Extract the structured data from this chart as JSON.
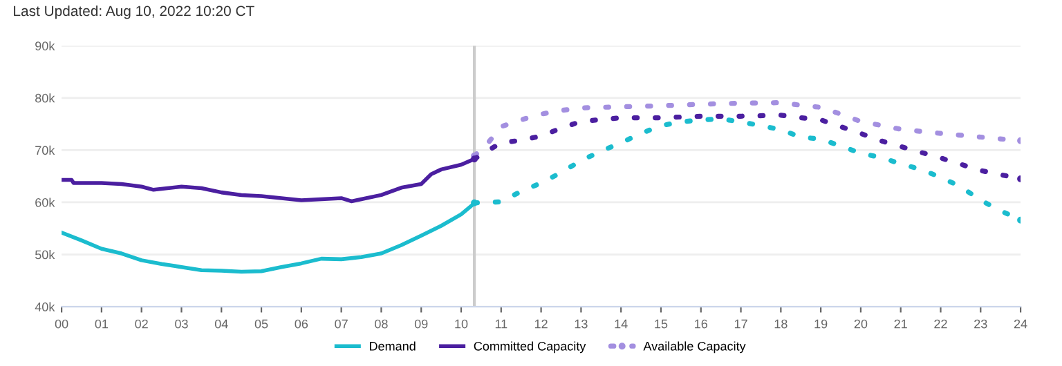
{
  "chart_data": {
    "type": "line",
    "annotations": [
      "Last Updated: Aug 10, 2022 10:20 CT"
    ],
    "series": [
      {
        "name": "Demand",
        "color": "#1bbcce",
        "line_style": "solid",
        "x": [
          0,
          0.5,
          1,
          1.5,
          2,
          2.5,
          3,
          3.5,
          4,
          4.5,
          5,
          5.5,
          6,
          6.5,
          7,
          7.5,
          8,
          8.5,
          9,
          9.5,
          10,
          10.33
        ],
        "values": [
          54.2,
          52.7,
          51.1,
          50.2,
          48.9,
          48.2,
          47.6,
          47.0,
          46.9,
          46.7,
          46.8,
          47.6,
          48.3,
          49.2,
          49.1,
          49.5,
          50.2,
          51.8,
          53.6,
          55.5,
          57.7,
          59.8
        ]
      },
      {
        "name": "Committed Capacity",
        "color": "#4b1fa0",
        "line_style": "solid",
        "x": [
          0,
          0.25,
          0.3,
          1,
          1.5,
          2,
          2.3,
          3,
          3.5,
          4,
          4.5,
          5,
          5.5,
          6,
          6.5,
          7,
          7.25,
          7.5,
          8,
          8.5,
          9,
          9.25,
          9.5,
          10,
          10.33
        ],
        "values": [
          64.3,
          64.3,
          63.7,
          63.7,
          63.5,
          63.0,
          62.4,
          63.0,
          62.7,
          61.9,
          61.4,
          61.2,
          60.8,
          60.4,
          60.6,
          60.8,
          60.2,
          60.6,
          61.4,
          62.8,
          63.5,
          65.4,
          66.3,
          67.2,
          68.3
        ]
      },
      {
        "name": "Available Capacity",
        "color": "#a38fe0",
        "line_style": "dotted",
        "x": [
          10.33,
          10.6,
          11,
          11.5,
          12,
          12.5,
          13,
          14,
          15,
          16,
          17,
          18,
          18.5,
          19,
          19.5,
          20,
          21,
          22,
          23,
          24
        ],
        "values": [
          68.9,
          70.7,
          74.5,
          75.8,
          76.9,
          77.6,
          78.1,
          78.3,
          78.5,
          78.8,
          79.0,
          79.1,
          78.6,
          78.2,
          76.9,
          75.5,
          74.0,
          73.2,
          72.5,
          71.8
        ]
      },
      {
        "color": "#4b1fa0",
        "line_style": "dotted",
        "x": [
          10.33,
          10.6,
          11,
          11.5,
          12,
          12.5,
          13,
          14,
          15,
          16,
          17,
          18,
          18.5,
          19,
          19.5,
          20,
          20.5,
          21,
          22,
          23,
          24
        ],
        "values": [
          68.3,
          69.6,
          71.4,
          71.9,
          72.7,
          74.2,
          75.5,
          76.2,
          76.2,
          76.5,
          76.5,
          76.7,
          76.2,
          75.8,
          74.5,
          73.2,
          71.8,
          70.7,
          68.5,
          66.1,
          64.5
        ]
      },
      {
        "color": "#1bbcce",
        "line_style": "dotted",
        "x": [
          10.33,
          11,
          11.5,
          12,
          12.5,
          13,
          13.5,
          14,
          14.5,
          15,
          15.5,
          16,
          16.5,
          17,
          17.5,
          18,
          18.5,
          19,
          19.5,
          20,
          20.5,
          21,
          21.5,
          22,
          22.5,
          23,
          23.5,
          24
        ],
        "values": [
          59.9,
          60.1,
          62.1,
          63.7,
          65.7,
          68.0,
          69.8,
          71.4,
          73.2,
          74.7,
          75.4,
          75.8,
          76.0,
          75.4,
          74.7,
          73.9,
          72.5,
          72.1,
          70.8,
          69.4,
          68.6,
          67.4,
          66.3,
          64.8,
          63.0,
          60.4,
          58.4,
          56.6
        ]
      }
    ],
    "xlim": [
      0,
      24
    ],
    "xticks": [
      {
        "value": 0,
        "label": "00"
      },
      {
        "value": 1,
        "label": "01"
      },
      {
        "value": 2,
        "label": "02"
      },
      {
        "value": 3,
        "label": "03"
      },
      {
        "value": 4,
        "label": "04"
      },
      {
        "value": 5,
        "label": "05"
      },
      {
        "value": 6,
        "label": "06"
      },
      {
        "value": 7,
        "label": "07"
      },
      {
        "value": 8,
        "label": "08"
      },
      {
        "value": 9,
        "label": "09"
      },
      10,
      11,
      12,
      13,
      14,
      15,
      16,
      17,
      18,
      19,
      20,
      21,
      22,
      23,
      24
    ],
    "ylim": [
      40,
      90
    ],
    "yticks": [
      {
        "value": 40,
        "label": "40k"
      },
      {
        "value": 50,
        "label": "50k"
      },
      {
        "value": 60,
        "label": "60k"
      },
      {
        "value": 70,
        "label": "70k"
      },
      {
        "value": 80,
        "label": "80k"
      },
      {
        "value": 90,
        "label": "90k"
      }
    ],
    "ref_lines": [
      {
        "axis": "x",
        "value": 10.33,
        "color": "#cccccc"
      }
    ],
    "grid": "y",
    "legend": "bottom"
  }
}
